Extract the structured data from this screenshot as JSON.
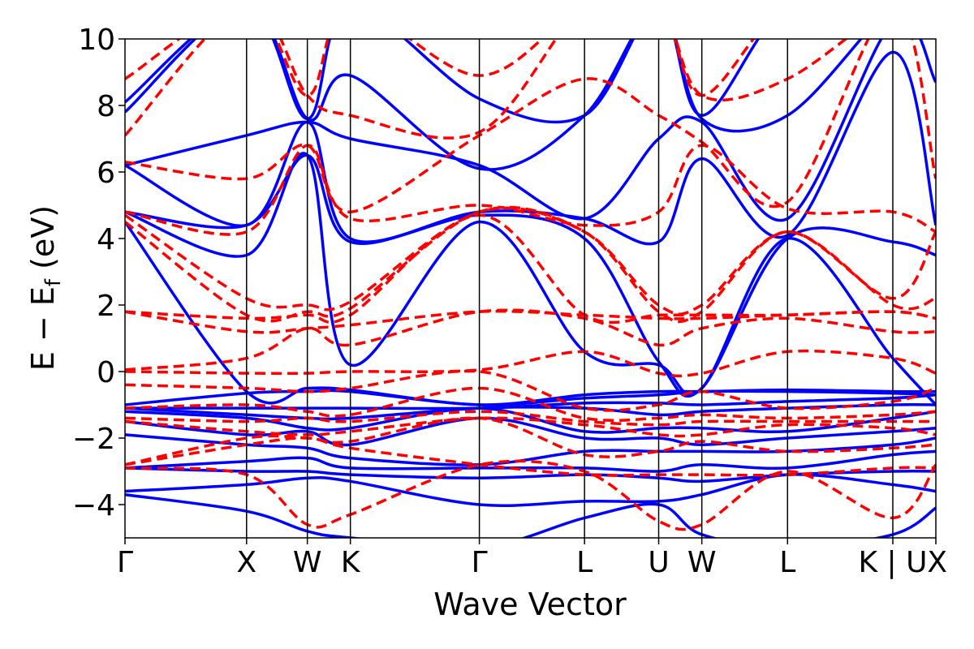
{
  "chart_data": {
    "type": "line",
    "xlabel": "Wave Vector",
    "ylabel": "E − E",
    "ylabel_sub": "f",
    "ylabel_unit": " (eV)",
    "ylim": [
      -5,
      10
    ],
    "y_ticks": [
      -4,
      -2,
      0,
      2,
      4,
      6,
      8,
      10
    ],
    "y_tick_labels": [
      "−4",
      "−2",
      "0",
      "2",
      "4",
      "6",
      "8",
      "10"
    ],
    "kpoints": [
      {
        "label": "Γ",
        "x": 0
      },
      {
        "label": "X",
        "x": 1.0
      },
      {
        "label": "W",
        "x": 1.5
      },
      {
        "label": "K",
        "x": 1.854
      },
      {
        "label": "Γ",
        "x": 2.915
      },
      {
        "label": "L",
        "x": 3.78
      },
      {
        "label": "U",
        "x": 4.39
      },
      {
        "label": "W",
        "x": 4.745
      },
      {
        "label": "L",
        "x": 5.45
      },
      {
        "label": "K | U",
        "x": 6.316
      },
      {
        "label": "X",
        "x": 6.67
      }
    ],
    "x_range": [
      0,
      6.67
    ],
    "grid": false,
    "series": [
      {
        "style": "solid",
        "color": "#0000ff",
        "bands": [
          [
            -3.7,
            -4.2,
            -4.8,
            -5.0,
            -5.3,
            -4.4,
            -4.0,
            -4.9,
            -5.3,
            -4.9,
            -4.1
          ],
          [
            -3.6,
            -3.4,
            -3.2,
            -3.3,
            -4.0,
            -3.9,
            -3.9,
            -3.7,
            -3.1,
            -3.4,
            -3.6
          ],
          [
            -2.9,
            -3.0,
            -3.0,
            -3.1,
            -3.2,
            -3.1,
            -3.2,
            -3.3,
            -3.1,
            -3.0,
            -3.0
          ],
          [
            -2.9,
            -2.7,
            -2.6,
            -2.9,
            -2.9,
            -2.9,
            -3.0,
            -2.8,
            -2.9,
            -2.5,
            -2.4
          ],
          [
            -1.9,
            -2.2,
            -2.3,
            -2.6,
            -2.8,
            -2.4,
            -2.4,
            -2.4,
            -2.4,
            -2.2,
            -2.0
          ],
          [
            -1.5,
            -1.9,
            -1.8,
            -2.2,
            -1.4,
            -2.0,
            -2.0,
            -2.2,
            -2.0,
            -1.8,
            -1.7
          ],
          [
            -1.2,
            -1.4,
            -1.7,
            -1.7,
            -1.1,
            -1.8,
            -1.7,
            -1.7,
            -1.8,
            -1.4,
            -1.2
          ],
          [
            -1.1,
            -1.3,
            -1.4,
            -1.4,
            -1.1,
            -1.1,
            -1.3,
            -1.2,
            -1.1,
            -1.0,
            -1.0
          ],
          [
            -1.1,
            -1.1,
            -1.1,
            -1.1,
            -1.1,
            -0.95,
            -0.95,
            -1.0,
            -0.9,
            -0.8,
            -0.7
          ],
          [
            -1.0,
            -0.65,
            -0.6,
            -0.6,
            -1.0,
            -0.8,
            -0.7,
            -0.6,
            -0.6,
            -0.65,
            -0.7
          ],
          [
            4.5,
            -0.6,
            -0.5,
            -0.55,
            -1.0,
            -0.7,
            -0.6,
            -0.6,
            -0.55,
            -0.6,
            -0.6
          ],
          [
            4.8,
            3.5,
            6.5,
            0.2,
            4.5,
            0.6,
            0.2,
            -0.5,
            4.0,
            0.4,
            -1.0
          ],
          [
            4.8,
            4.4,
            6.5,
            3.9,
            4.7,
            4.0,
            0.3,
            -0.5,
            4.0,
            3.9,
            3.5
          ],
          [
            6.2,
            4.4,
            7.5,
            4.0,
            4.8,
            4.6,
            3.9,
            6.4,
            4.1,
            9.6,
            4.4
          ],
          [
            6.2,
            7.1,
            7.5,
            7.0,
            6.2,
            4.6,
            7.0,
            7.5,
            4.6,
            10.5,
            8.7
          ],
          [
            7.8,
            11.0,
            7.6,
            8.9,
            6.1,
            7.7,
            11.0,
            7.6,
            7.7,
            11.0,
            11.0
          ],
          [
            8.1,
            11.0,
            7.6,
            11.0,
            8.2,
            7.7,
            11.0,
            7.7,
            11.0,
            11.0,
            11.0
          ]
        ]
      },
      {
        "style": "dashed",
        "color": "#ff0000",
        "bands": [
          [
            -2.9,
            -3.1,
            -4.6,
            -4.3,
            -2.8,
            -3.0,
            -4.5,
            -4.6,
            -3.0,
            -4.4,
            -2.8
          ],
          [
            -2.8,
            -2.2,
            -2.0,
            -2.3,
            -2.8,
            -3.1,
            -3.1,
            -3.1,
            -3.1,
            -2.9,
            -2.9
          ],
          [
            -2.8,
            -2.0,
            -2.0,
            -2.1,
            -1.4,
            -2.5,
            -2.4,
            -2.1,
            -2.4,
            -2.3,
            -2.2
          ],
          [
            -1.5,
            -1.8,
            -1.9,
            -1.8,
            -1.4,
            -1.6,
            -1.9,
            -1.9,
            -1.6,
            -1.7,
            -1.9
          ],
          [
            -1.4,
            -1.5,
            -1.4,
            -1.5,
            -1.2,
            -1.5,
            -1.6,
            -1.5,
            -1.5,
            -1.5,
            -1.5
          ],
          [
            -1.1,
            -1.0,
            -1.2,
            -1.3,
            -0.5,
            -1.4,
            -1.4,
            -1.3,
            -1.4,
            -1.3,
            -1.2
          ],
          [
            -0.4,
            -0.5,
            -0.6,
            -0.5,
            0.0,
            -1.1,
            -1.0,
            -0.6,
            -1.1,
            -0.9,
            -0.5
          ],
          [
            0.0,
            -0.05,
            -0.05,
            -0.0,
            0.05,
            0.6,
            -0.05,
            -0.05,
            0.6,
            0.4,
            -0.05
          ],
          [
            0.05,
            0.4,
            1.3,
            0.8,
            1.8,
            1.6,
            0.8,
            1.3,
            1.6,
            1.2,
            1.2
          ],
          [
            1.8,
            1.2,
            1.3,
            1.4,
            1.8,
            1.7,
            1.6,
            1.6,
            1.7,
            1.8,
            1.6
          ],
          [
            1.8,
            1.6,
            1.7,
            1.7,
            4.7,
            1.7,
            1.7,
            1.7,
            1.7,
            1.8,
            1.6
          ],
          [
            4.5,
            1.7,
            1.8,
            1.9,
            4.8,
            4.2,
            1.8,
            1.8,
            4.2,
            2.0,
            2.2
          ],
          [
            4.7,
            2.2,
            2.0,
            2.1,
            4.8,
            4.2,
            2.0,
            2.0,
            4.2,
            2.2,
            4.2
          ],
          [
            4.8,
            4.2,
            6.8,
            4.6,
            5.0,
            4.4,
            4.8,
            6.8,
            4.9,
            4.8,
            4.2
          ],
          [
            6.3,
            5.8,
            6.8,
            4.8,
            7.1,
            8.8,
            7.7,
            6.9,
            5.1,
            11.0,
            5.8
          ],
          [
            7.1,
            11.0,
            8.3,
            7.7,
            7.2,
            11.0,
            11.0,
            8.3,
            8.8,
            11.0,
            11.0
          ],
          [
            8.8,
            11.0,
            8.3,
            11.0,
            8.9,
            11.0,
            11.0,
            8.3,
            11.0,
            11.0,
            11.0
          ]
        ]
      }
    ]
  }
}
